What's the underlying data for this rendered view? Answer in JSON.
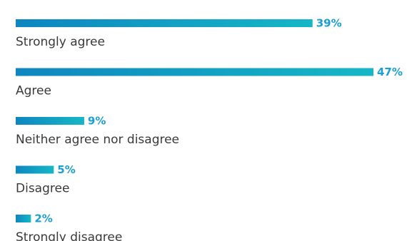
{
  "chart_data": {
    "type": "bar",
    "orientation": "horizontal",
    "categories": [
      "Strongly agree",
      "Agree",
      "Neither agree nor disagree",
      "Disagree",
      "Strongly disagree"
    ],
    "values": [
      39,
      47,
      9,
      5,
      2
    ],
    "value_labels": [
      "39%",
      "47%",
      "9%",
      "5%",
      "2%"
    ],
    "unit": "%",
    "xlim": [
      0,
      47
    ],
    "grid": false,
    "legend": "none",
    "colors": {
      "bar_start": "#0e86c0",
      "bar_end": "#16b7c6",
      "value_text": "#1a9fd2",
      "label_text": "#3a3a3a"
    }
  }
}
